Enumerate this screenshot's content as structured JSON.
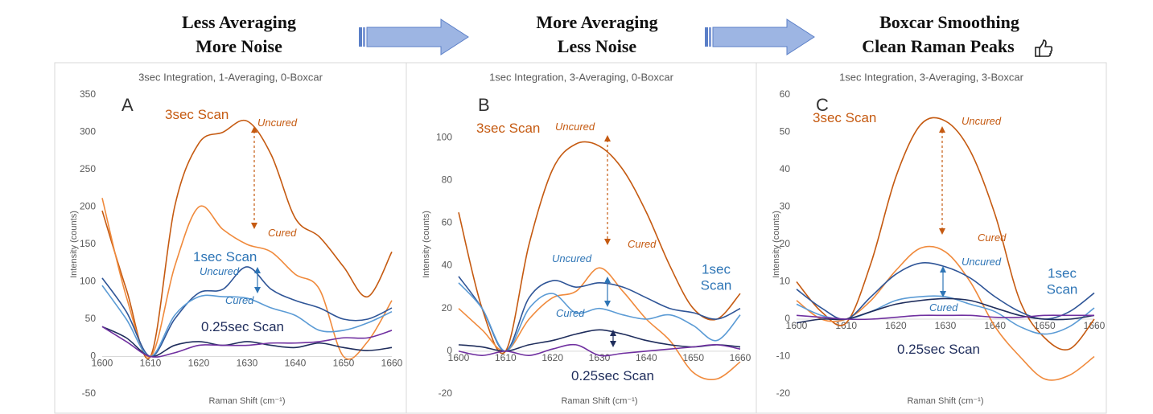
{
  "headers": [
    {
      "lines": [
        "Less Averaging",
        "More Noise"
      ]
    },
    {
      "lines": [
        "More Averaging",
        "Less Noise"
      ]
    },
    {
      "lines": [
        "Boxcar Smoothing",
        "Clean Raman Peaks"
      ]
    }
  ],
  "chart_data": [
    {
      "type": "line",
      "title": "3sec Integration, 1-Averaging, 0-Boxcar",
      "panel_label": "A",
      "x_label": "Raman Shift (cm⁻¹)",
      "y_label": "Intensity (counts)",
      "x": [
        1600,
        1605,
        1610,
        1615,
        1620,
        1625,
        1630,
        1635,
        1640,
        1645,
        1650,
        1655,
        1660
      ],
      "xlim": [
        1600,
        1660
      ],
      "xticks": [
        1600,
        1610,
        1620,
        1630,
        1640,
        1650,
        1660
      ],
      "ylim": [
        -50,
        350
      ],
      "yticks": [
        -50,
        0,
        50,
        100,
        150,
        200,
        250,
        300,
        350
      ],
      "grid": false,
      "series": [
        {
          "color": "#c55a11",
          "values": [
            195,
            90,
            0,
            200,
            285,
            300,
            315,
            270,
            185,
            160,
            120,
            80,
            140
          ]
        },
        {
          "color": "#f08a3c",
          "values": [
            212,
            80,
            0,
            120,
            200,
            170,
            150,
            140,
            110,
            90,
            0,
            20,
            75
          ]
        },
        {
          "color": "#2f5597",
          "values": [
            105,
            60,
            0,
            50,
            85,
            90,
            120,
            90,
            75,
            65,
            50,
            50,
            65
          ]
        },
        {
          "color": "#5b9bd5",
          "values": [
            95,
            50,
            0,
            55,
            80,
            80,
            78,
            65,
            55,
            35,
            35,
            45,
            60
          ]
        },
        {
          "color": "#1f2d5c",
          "values": [
            40,
            25,
            0,
            15,
            20,
            15,
            20,
            15,
            12,
            18,
            12,
            8,
            12
          ]
        },
        {
          "color": "#7030a0",
          "values": [
            40,
            20,
            0,
            5,
            15,
            15,
            15,
            18,
            18,
            20,
            25,
            25,
            35
          ]
        }
      ],
      "annotations": [
        "3sec Scan",
        "Uncured",
        "Cured",
        "1sec Scan",
        "Uncured",
        "Cured",
        "0.25sec Scan"
      ]
    },
    {
      "type": "line",
      "title": "1sec Integration, 3-Averaging, 0-Boxcar",
      "panel_label": "B",
      "x_label": "Raman Shift (cm⁻¹)",
      "y_label": "Intensity (counts)",
      "x": [
        1600,
        1605,
        1610,
        1615,
        1620,
        1625,
        1630,
        1635,
        1640,
        1645,
        1650,
        1655,
        1660
      ],
      "xlim": [
        1600,
        1660
      ],
      "xticks": [
        1600,
        1610,
        1620,
        1630,
        1640,
        1650,
        1660
      ],
      "ylim": [
        -20,
        120
      ],
      "yticks": [
        -20,
        0,
        20,
        40,
        60,
        80,
        100
      ],
      "grid": false,
      "series": [
        {
          "color": "#c55a11",
          "values": [
            65,
            20,
            0,
            50,
            85,
            97,
            96,
            85,
            65,
            40,
            20,
            15,
            27
          ]
        },
        {
          "color": "#f08a3c",
          "values": [
            20,
            10,
            0,
            15,
            25,
            28,
            39,
            28,
            15,
            5,
            -10,
            -13,
            -5
          ]
        },
        {
          "color": "#2f5597",
          "values": [
            35,
            20,
            0,
            25,
            33,
            30,
            32,
            30,
            25,
            20,
            18,
            15,
            20
          ]
        },
        {
          "color": "#5b9bd5",
          "values": [
            32,
            20,
            0,
            20,
            27,
            18,
            20,
            17,
            15,
            17,
            12,
            5,
            17
          ]
        },
        {
          "color": "#1f2d5c",
          "values": [
            3,
            2,
            0,
            3,
            5,
            8,
            10,
            8,
            5,
            3,
            2,
            3,
            2
          ]
        },
        {
          "color": "#7030a0",
          "values": [
            0,
            -2,
            0,
            -2,
            1,
            3,
            -2,
            -1,
            0,
            1,
            2,
            3,
            1
          ]
        }
      ],
      "annotations": [
        "3sec Scan",
        "Uncured",
        "Cured",
        "Uncured",
        "Cured",
        "1sec Scan",
        "0.25sec Scan"
      ]
    },
    {
      "type": "line",
      "title": "1sec Integration, 3-Averaging, 3-Boxcar",
      "panel_label": "C",
      "x_label": "Raman Shift (cm⁻¹)",
      "y_label": "Intensity (counts)",
      "x": [
        1600,
        1605,
        1610,
        1615,
        1620,
        1625,
        1630,
        1635,
        1640,
        1645,
        1650,
        1655,
        1660
      ],
      "xlim": [
        1600,
        1660
      ],
      "xticks": [
        1600,
        1610,
        1620,
        1630,
        1640,
        1650,
        1660
      ],
      "ylim": [
        -20,
        60
      ],
      "yticks": [
        -20,
        -10,
        0,
        10,
        20,
        30,
        40,
        50,
        60
      ],
      "grid": false,
      "series": [
        {
          "color": "#c55a11",
          "values": [
            10,
            2,
            -1,
            15,
            38,
            52,
            53,
            45,
            28,
            5,
            -5,
            -8,
            0
          ]
        },
        {
          "color": "#f08a3c",
          "values": [
            5,
            0,
            0,
            5,
            13,
            19,
            18,
            10,
            -2,
            -10,
            -16,
            -15,
            -10
          ]
        },
        {
          "color": "#2f5597",
          "values": [
            8,
            3,
            0,
            6,
            12,
            15,
            14,
            11,
            6,
            2,
            0,
            2,
            7
          ]
        },
        {
          "color": "#5b9bd5",
          "values": [
            4,
            1,
            0,
            2,
            5,
            6,
            6,
            4,
            2,
            -2,
            -4,
            -2,
            3
          ]
        },
        {
          "color": "#1f2d5c",
          "values": [
            -1,
            0,
            0,
            2,
            4,
            5,
            5.5,
            5,
            3,
            1,
            0,
            0,
            1
          ]
        },
        {
          "color": "#7030a0",
          "values": [
            1,
            0.5,
            0,
            0,
            0.5,
            1,
            1,
            1,
            0.5,
            0.5,
            1,
            1,
            1
          ]
        }
      ],
      "annotations": [
        "3sec Scan",
        "Uncured",
        "Cured",
        "Uncured",
        "1sec Scan",
        "Cured",
        "0.25sec Scan"
      ]
    }
  ]
}
